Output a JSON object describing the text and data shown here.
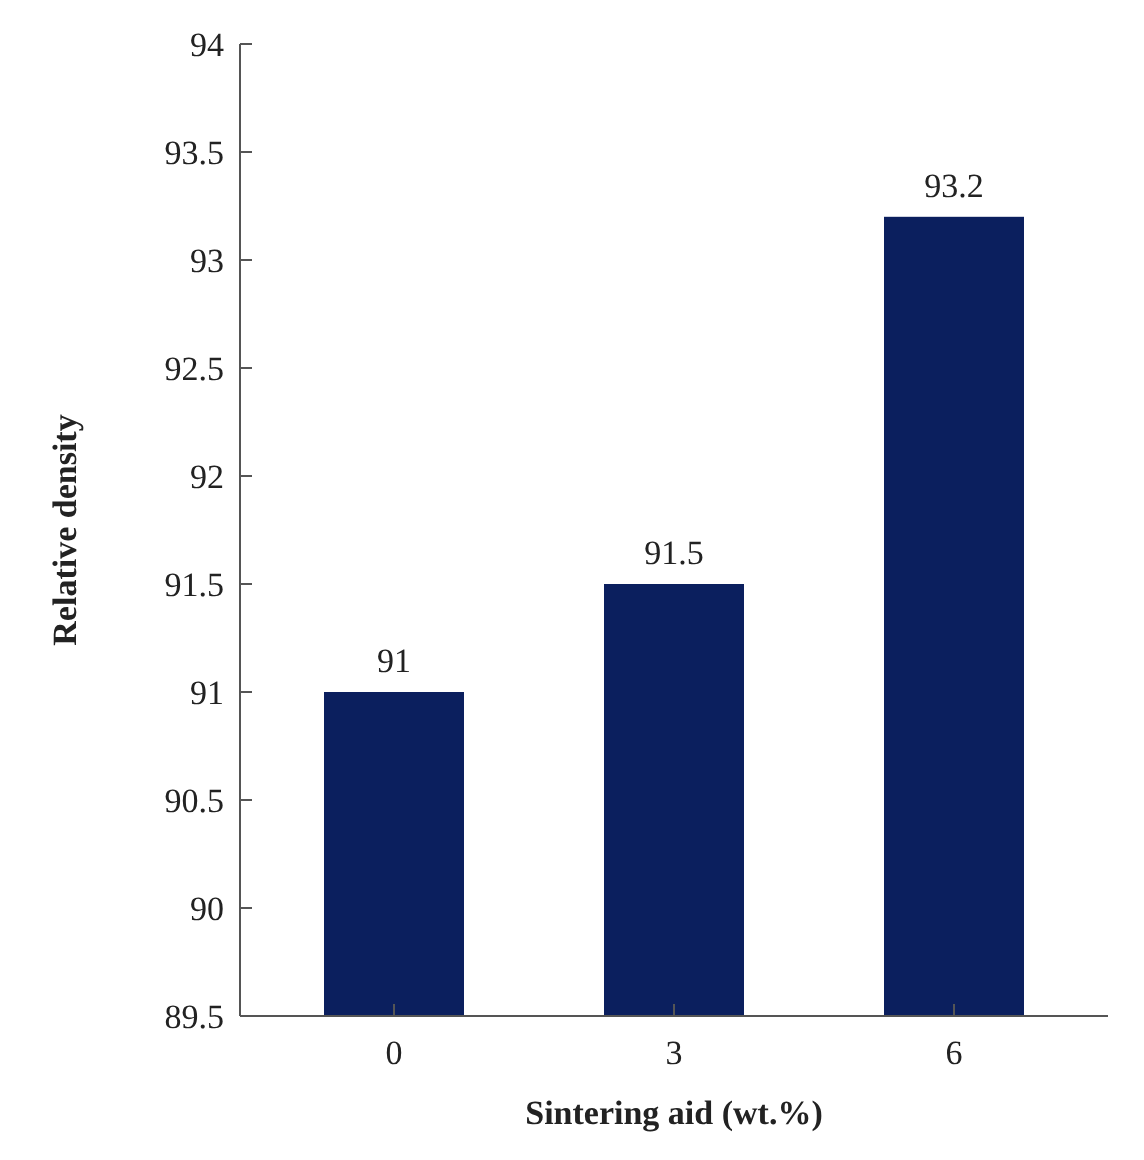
{
  "chart_data": {
    "type": "bar",
    "xlabel": "Sintering aid (wt.%)",
    "ylabel": "Relative density",
    "categories": [
      "0",
      "3",
      "6"
    ],
    "values": [
      91,
      91.5,
      93.2
    ],
    "color": "#0b1f5e",
    "ylim": [
      89.5,
      94
    ],
    "yticks": [
      89.5,
      90,
      90.5,
      91,
      91.5,
      92,
      92.5,
      93,
      93.5,
      94
    ],
    "data_labels": true,
    "grid": false
  }
}
